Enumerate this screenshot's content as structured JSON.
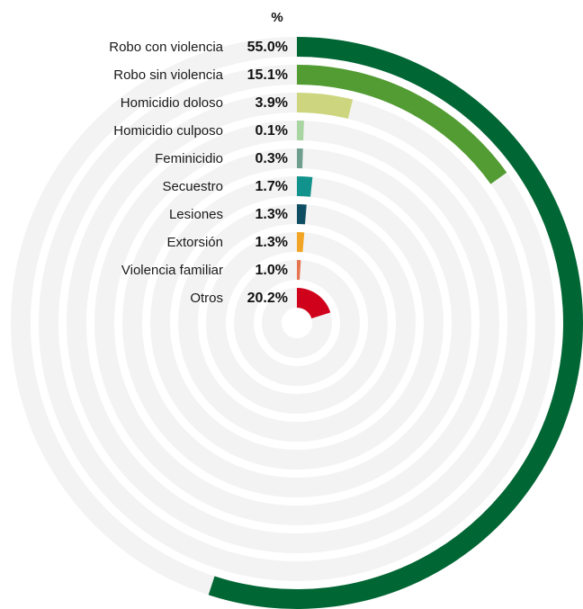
{
  "chart_data": {
    "type": "radial-bar",
    "unit": "%",
    "categories": [
      "Robo con violencia",
      "Robo sin violencia",
      "Homicidio doloso",
      "Homicidio culposo",
      "Feminicidio",
      "Secuestro",
      "Lesiones",
      "Extorsión",
      "Violencia familiar",
      "Otros"
    ],
    "values": [
      55.0,
      15.1,
      3.9,
      0.1,
      0.3,
      1.7,
      1.3,
      1.3,
      1.0,
      20.2
    ],
    "value_labels": [
      "55.0%",
      "15.1%",
      "3.9%",
      "0.1%",
      "0.3%",
      "1.7%",
      "1.3%",
      "1.3%",
      "1.0%",
      "20.2%"
    ],
    "colors": [
      "#006633",
      "#529c33",
      "#cdd67e",
      "#a8d5a2",
      "#6f9e8f",
      "#12928c",
      "#0f4d63",
      "#f2a524",
      "#e5734d",
      "#d0021b"
    ],
    "track_color": "#f3f3f3",
    "scale_max": 100
  }
}
